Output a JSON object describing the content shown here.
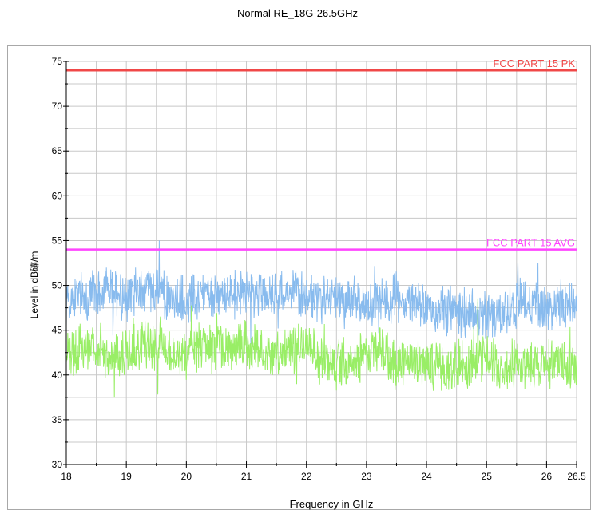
{
  "title": "Normal RE_18G-26.5GHz",
  "chart_data": {
    "type": "line",
    "title": "Normal RE_18G-26.5GHz",
    "xlabel": "Frequency in GHz",
    "ylabel": "Level in dB礵/m",
    "xlim": [
      18,
      26.5
    ],
    "ylim": [
      30,
      75
    ],
    "grid": true,
    "x_ticks": [
      "18",
      "19",
      "20",
      "21",
      "22",
      "23",
      "24",
      "25",
      "26",
      "26.5"
    ],
    "y_ticks": [
      "30",
      "35",
      "40",
      "45",
      "50",
      "55",
      "60",
      "65",
      "70",
      "75"
    ],
    "limit_lines": [
      {
        "name": "FCC PART 15  PK",
        "value": 74,
        "color": "#f04848"
      },
      {
        "name": "FCC PART 15 AVG",
        "value": 54,
        "color": "#ff44ff"
      }
    ],
    "series": [
      {
        "color": "#88bbee",
        "x": [
          18.0,
          18.25,
          18.5,
          18.75,
          19.0,
          19.25,
          19.5,
          19.75,
          20.0,
          20.25,
          20.5,
          20.75,
          21.0,
          21.25,
          21.5,
          21.75,
          22.0,
          22.25,
          22.5,
          22.75,
          23.0,
          23.25,
          23.5,
          23.75,
          24.0,
          24.25,
          24.5,
          24.75,
          25.0,
          25.25,
          25.5,
          25.75,
          26.0,
          26.25,
          26.5
        ],
        "values": [
          48.5,
          48.8,
          49.2,
          49.5,
          48.6,
          49.6,
          49.3,
          48.4,
          48.6,
          49.2,
          49.0,
          49.1,
          48.9,
          48.8,
          49.3,
          49.5,
          48.7,
          48.4,
          48.1,
          48.3,
          48.3,
          48.7,
          48.8,
          47.9,
          47.6,
          46.9,
          47.7,
          46.8,
          46.8,
          46.3,
          48.0,
          48.1,
          47.4,
          47.7,
          47.8
        ]
      },
      {
        "color": "#99ee66",
        "x": [
          18.0,
          18.25,
          18.5,
          18.75,
          19.0,
          19.25,
          19.5,
          19.75,
          20.0,
          20.25,
          20.5,
          20.75,
          21.0,
          21.25,
          21.5,
          21.75,
          22.0,
          22.25,
          22.5,
          22.75,
          23.0,
          23.25,
          23.5,
          23.75,
          24.0,
          24.25,
          24.5,
          24.75,
          25.0,
          25.25,
          25.5,
          25.75,
          26.0,
          26.25,
          26.5
        ],
        "values": [
          42.2,
          42.7,
          43.3,
          42.3,
          42.4,
          43.6,
          42.9,
          42.7,
          42.1,
          43.1,
          42.8,
          42.9,
          43.1,
          42.8,
          42.3,
          42.8,
          43.5,
          41.5,
          41.1,
          41.4,
          42.3,
          42.6,
          40.7,
          42.2,
          41.3,
          40.9,
          41.1,
          41.2,
          42.3,
          40.1,
          41.8,
          40.8,
          41.2,
          41.1,
          40.8
        ]
      }
    ]
  }
}
